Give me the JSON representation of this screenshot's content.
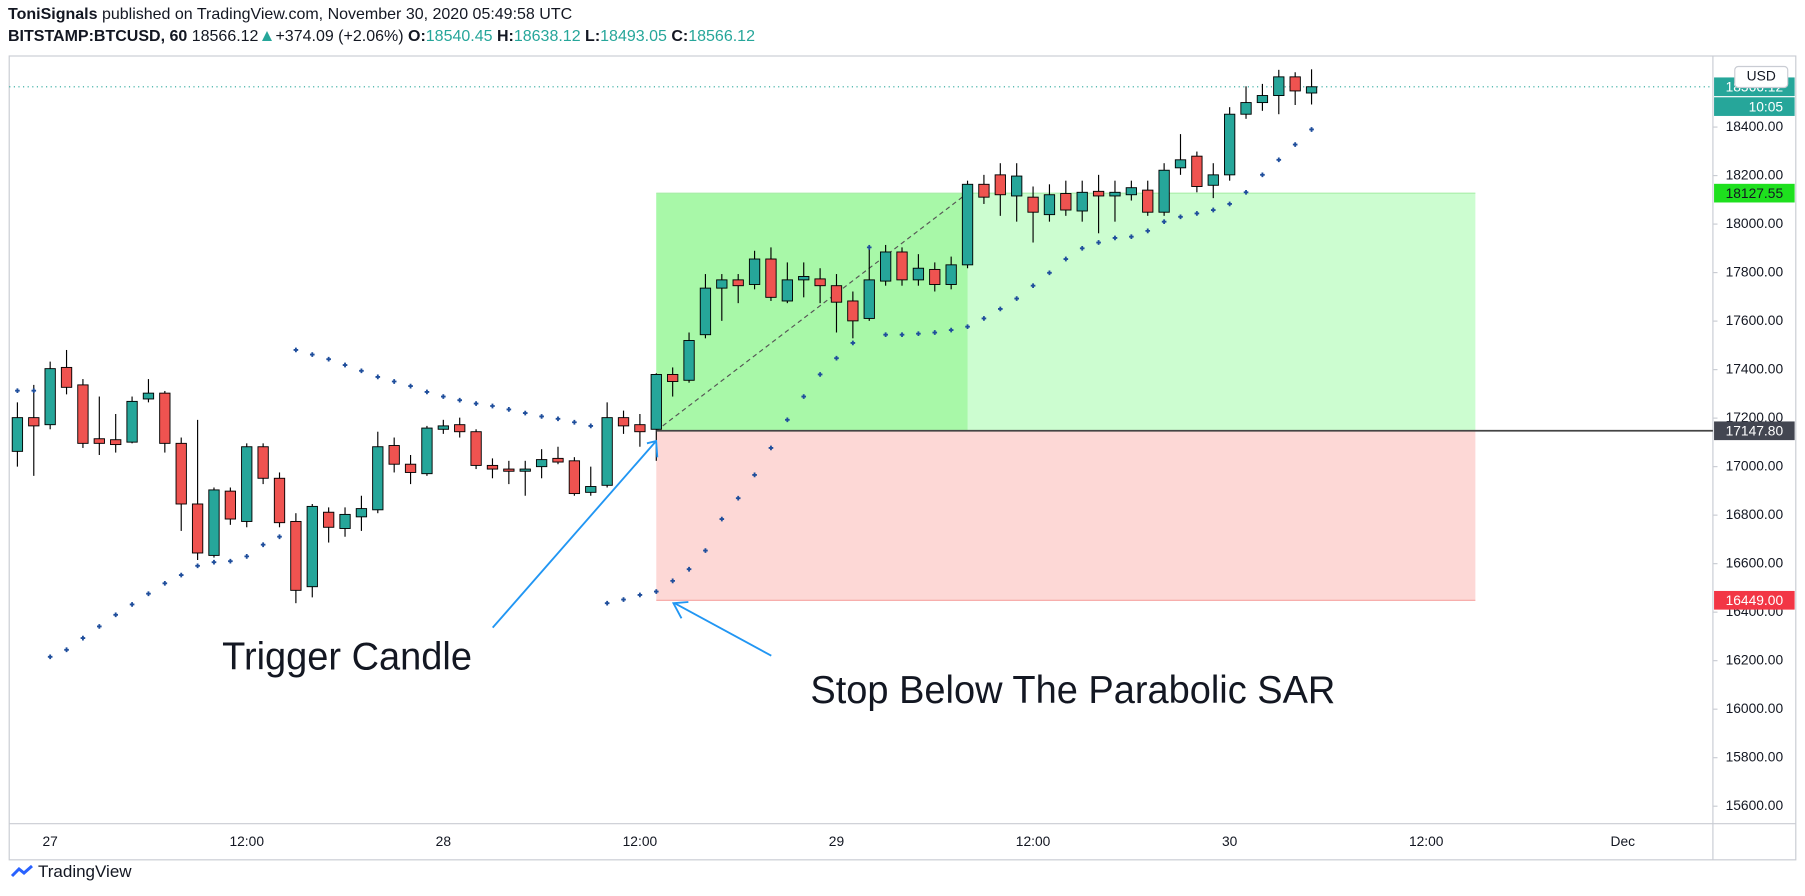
{
  "header": {
    "author": "ToniSignals",
    "published": "published on TradingView.com, November 30, 2020 05:49:58 UTC",
    "symbol": "BITSTAMP:BTCUSD, 60",
    "change": "+374.09 (+2.06%)",
    "o_label": "O:",
    "h_label": "H:",
    "l_label": "L:",
    "c_label": "C:"
  },
  "footer": {
    "brand": "TradingView"
  },
  "chart_data": {
    "type": "candlestick",
    "annotations": [
      "Trigger Candle",
      "Stop Below The Parabolic SAR"
    ],
    "currency": "USD",
    "countdown": "10:05",
    "up_color": "#26a69a",
    "down_color": "#ef5350",
    "sar_color": "#1f4e9c",
    "grid": false,
    "categories": [
      null,
      null,
      "27",
      null,
      null,
      null,
      null,
      null,
      null,
      null,
      null,
      null,
      null,
      null,
      "12:00",
      null,
      null,
      null,
      null,
      null,
      null,
      null,
      null,
      null,
      null,
      null,
      "28",
      null,
      null,
      null,
      null,
      null,
      null,
      null,
      null,
      null,
      null,
      null,
      "12:00",
      null,
      null,
      null,
      null,
      null,
      null,
      null,
      null,
      null,
      null,
      null,
      "29",
      null,
      null,
      null,
      null,
      null,
      null,
      null,
      null,
      null,
      null,
      null,
      "12:00",
      null,
      null,
      null,
      null,
      null,
      null,
      null,
      null,
      null,
      null,
      null,
      "30",
      null,
      null,
      null,
      null,
      null,
      null,
      null,
      null,
      null,
      null,
      null,
      "12:00",
      null,
      null,
      null,
      null,
      null,
      null,
      null,
      null,
      null,
      null,
      null,
      "Dec",
      null,
      null,
      null,
      null,
      null
    ],
    "open": [
      17063,
      17202,
      17173,
      17409,
      17337,
      17115,
      17111,
      17101,
      17279,
      17303,
      17096,
      16846,
      16634,
      16899,
      16774,
      17082,
      16952,
      16774,
      16505,
      16812,
      16745,
      16793,
      16822,
      17087,
      17010,
      16971,
      17154,
      17173,
      17144,
      17005,
      16990,
      16981,
      17000,
      17034,
      17024,
      16894,
      16923,
      17202,
      17173,
      17154,
      17380,
      17356,
      17544,
      17736,
      17770,
      17751,
      17856,
      17683,
      17770,
      17774,
      17746,
      17683,
      17611,
      17765,
      17885,
      17770,
      17813,
      17751,
      17832,
      18164,
      18203,
      18116,
      18111,
      18039,
      18126,
      18054,
      18135,
      18116,
      18121,
      18140,
      18049,
      18232,
      18280,
      18160,
      18203,
      18453,
      18501,
      18530,
      18607,
      18540.45,
      null,
      null,
      null,
      null,
      null,
      null,
      null,
      null,
      null,
      null,
      null,
      null,
      null,
      null,
      null,
      null,
      null,
      null,
      null,
      null,
      null,
      null,
      null,
      null
    ],
    "high": [
      17265,
      17337,
      17433,
      17481,
      17361,
      17289,
      17217,
      17289,
      17361,
      17312,
      17120,
      17193,
      16914,
      16914,
      17096,
      17096,
      16976,
      16808,
      16846,
      16832,
      16832,
      16880,
      17144,
      17120,
      17048,
      17168,
      17193,
      17202,
      17154,
      17034,
      17024,
      17024,
      17072,
      17082,
      17039,
      17000,
      17265,
      17231,
      17217,
      17385,
      17409,
      17553,
      17794,
      17794,
      17794,
      17890,
      17904,
      17842,
      17842,
      17818,
      17794,
      17722,
      17914,
      17914,
      17904,
      17876,
      17842,
      17866,
      18179,
      18203,
      18251,
      18251,
      18155,
      18164,
      18179,
      18179,
      18203,
      18179,
      18179,
      18179,
      18251,
      18371,
      18299,
      18251,
      18482,
      18568,
      18578,
      18636,
      18626,
      18638.12,
      null,
      null,
      null,
      null,
      null,
      null,
      null,
      null,
      null,
      null,
      null,
      null,
      null,
      null,
      null,
      null,
      null,
      null,
      null,
      null,
      null,
      null,
      null,
      null
    ],
    "low": [
      17000,
      16962,
      17154,
      17298,
      17077,
      17048,
      17058,
      17096,
      17265,
      17058,
      16735,
      16615,
      16625,
      16760,
      16750,
      16928,
      16750,
      16437,
      16461,
      16687,
      16711,
      16735,
      16808,
      16976,
      16928,
      16962,
      17135,
      17120,
      16990,
      16952,
      16928,
      16880,
      16952,
      17010,
      16880,
      16880,
      16914,
      17135,
      17082,
      17024,
      17289,
      17346,
      17529,
      17601,
      17674,
      17731,
      17683,
      17674,
      17698,
      17674,
      17553,
      17529,
      17601,
      17746,
      17746,
      17746,
      17722,
      17731,
      17818,
      18083,
      18034,
      18010,
      17924,
      18010,
      18034,
      18010,
      17962,
      18010,
      18097,
      18034,
      18034,
      18203,
      18131,
      18107,
      18179,
      18434,
      18467,
      18453,
      18491,
      18493.05,
      null,
      null,
      null,
      null,
      null,
      null,
      null,
      null,
      null,
      null,
      null,
      null,
      null,
      null,
      null,
      null,
      null,
      null,
      null,
      null,
      null,
      null,
      null,
      null
    ],
    "close": [
      17202,
      17168,
      17404,
      17327,
      17096,
      17096,
      17091,
      17269,
      17303,
      17096,
      16846,
      16644,
      16904,
      16784,
      17082,
      16952,
      16769,
      16490,
      16836,
      16750,
      16803,
      16827,
      17082,
      17010,
      16976,
      17159,
      17168,
      17144,
      17005,
      16990,
      16981,
      16990,
      17029,
      17019,
      16889,
      16918,
      17202,
      17168,
      17144,
      17380,
      17351,
      17520,
      17736,
      17770,
      17746,
      17856,
      17698,
      17770,
      17784,
      17746,
      17678,
      17601,
      17770,
      17885,
      17770,
      17818,
      17751,
      17832,
      18164,
      18111,
      18121,
      18198,
      18049,
      18121,
      18058,
      18131,
      18116,
      18131,
      18150,
      18049,
      18222,
      18265,
      18155,
      18203,
      18453,
      18501,
      18530,
      18607,
      18549,
      18566.12,
      null,
      null,
      null,
      null,
      null,
      null,
      null,
      null,
      null,
      null,
      null,
      null,
      null,
      null,
      null,
      null,
      null,
      null,
      null,
      null,
      null,
      null,
      null,
      null
    ],
    "sar": [
      17313,
      17313,
      16216,
      16245,
      16293,
      16341,
      16389,
      16432,
      16476,
      16519,
      16553,
      16591,
      16606,
      16610,
      16630,
      16678,
      16711,
      17481,
      17462,
      17443,
      17419,
      17395,
      17370,
      17351,
      17332,
      17308,
      17289,
      17274,
      17260,
      17250,
      17236,
      17221,
      17207,
      17197,
      17183,
      17168,
      16437,
      16452,
      16471,
      16485,
      16529,
      16577,
      16654,
      16784,
      16870,
      16966,
      17077,
      17193,
      17289,
      17380,
      17447,
      17510,
      17904,
      17544,
      17544,
      17548,
      17553,
      17563,
      17577,
      17611,
      17650,
      17693,
      17746,
      17799,
      17856,
      17900,
      17924,
      17943,
      17948,
      17972,
      18010,
      18030,
      18044,
      18058,
      18083,
      18131,
      18203,
      18265,
      18328,
      18390,
      null,
      null,
      null,
      null,
      null,
      null,
      null,
      null,
      null,
      null,
      null,
      null,
      null,
      null,
      null,
      null,
      null,
      null,
      null,
      null,
      null,
      null,
      null,
      null
    ],
    "position": {
      "target": 18127.55,
      "entry": {
        "value": 17147.8,
        "label": "17147.80"
      },
      "stop": {
        "value": 16449,
        "label": "16449.00"
      }
    },
    "ylim": [
      15528,
      18693
    ],
    "yticks": [
      {
        "value": 15600,
        "label": "15600.00"
      },
      {
        "value": 15800,
        "label": "15800.00"
      },
      {
        "value": 16000,
        "label": "16000.00"
      },
      {
        "value": 16200,
        "label": "16200.00"
      },
      {
        "value": 16400,
        "label": "16400.00"
      },
      {
        "value": 16600,
        "label": "16600.00"
      },
      {
        "value": 16800,
        "label": "16800.00"
      },
      {
        "value": 17000,
        "label": "17000.00"
      },
      {
        "value": 17200,
        "label": "17200.00"
      },
      {
        "value": 17400,
        "label": "17400.00"
      },
      {
        "value": 17600,
        "label": "17600.00"
      },
      {
        "value": 17800,
        "label": "17800.00"
      },
      {
        "value": 18000,
        "label": "18000.00"
      },
      {
        "value": 18200,
        "label": "18200.00"
      },
      {
        "value": 18400,
        "label": "18400.00"
      }
    ]
  }
}
